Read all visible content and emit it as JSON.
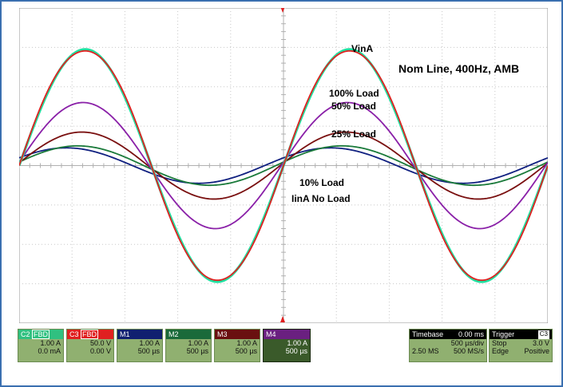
{
  "chart_data": {
    "type": "line",
    "title": "Nom Line, 400Hz, AMB",
    "xlabel": "",
    "ylabel": "",
    "xlim": [
      0,
      10
    ],
    "ylim": [
      -4,
      4
    ],
    "grid": true,
    "series": [
      {
        "name": "VinA",
        "color": "#e02020",
        "amplitude": 3.0,
        "phase": 0
      },
      {
        "name": "100% Load",
        "color": "#20e0a0",
        "amplitude": 2.95,
        "phase": 0
      },
      {
        "name": "50% Load",
        "color": "#8a20a8",
        "amplitude": 1.6,
        "phase": 0.05
      },
      {
        "name": "25% Load",
        "color": "#7a1010",
        "amplitude": 0.85,
        "phase": 0.08
      },
      {
        "name": "10% Load",
        "color": "#1a7a3a",
        "amplitude": 0.5,
        "phase": 0.18
      },
      {
        "name": "IinA No Load",
        "color": "#102080",
        "amplitude": 0.45,
        "phase": 0.45
      }
    ],
    "colors": {
      "vin": "#e02020",
      "load100": "#20e0a0",
      "load50": "#8a20a8",
      "load25": "#7a1010",
      "load10": "#1a7a3a",
      "noload": "#102080",
      "title": "#111111"
    }
  },
  "channels": [
    {
      "id": "C2",
      "badge": "FBD",
      "line1": "1.00 A",
      "line2": "0.0 mA",
      "head_color": "#30c080"
    },
    {
      "id": "C3",
      "badge": "FBD",
      "line1": "50.0 V",
      "line2": "0.00 V",
      "head_color": "#e02020"
    },
    {
      "id": "M1",
      "badge": "",
      "line1": "1.00 A",
      "line2": "500 µs",
      "head_color": "#102070"
    },
    {
      "id": "M2",
      "badge": "",
      "line1": "1.00 A",
      "line2": "500 µs",
      "head_color": "#1a6a3a"
    },
    {
      "id": "M3",
      "badge": "",
      "line1": "1.00 A",
      "line2": "500 µs",
      "head_color": "#6a1010"
    },
    {
      "id": "M4",
      "badge": "",
      "line1": "1.00 A",
      "line2": "500 µs",
      "head_color": "#6a2080"
    }
  ],
  "timebase": {
    "label": "Timebase",
    "value": "0.00 ms",
    "div": "500 µs/div",
    "samples": "2.50 MS",
    "rate": "500 MS/s"
  },
  "trigger": {
    "label": "Trigger",
    "ch": "C3",
    "mode": "Stop",
    "level": "3.0 V",
    "type": "Edge",
    "slope": "Positive"
  }
}
